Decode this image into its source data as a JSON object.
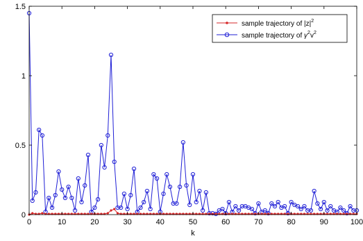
{
  "chart_data": {
    "type": "line",
    "xlabel": "k",
    "ylabel": "",
    "xlim": [
      0,
      100
    ],
    "ylim": [
      0,
      1.5
    ],
    "xticks": [
      0,
      10,
      20,
      30,
      40,
      50,
      60,
      70,
      80,
      90,
      100
    ],
    "yticks": [
      0,
      0.5,
      1,
      1.5
    ],
    "ytick_labels": [
      "0",
      "0.5",
      "1",
      "1.5"
    ],
    "grid": false,
    "legend_position": "top-right",
    "series": [
      {
        "name_prefix": "sample trajectory of |z|",
        "name_suffix": "2",
        "color": "#d62728",
        "marker": "filled-dot",
        "values": [
          0,
          0.01,
          0.005,
          0.005,
          0.01,
          0.005,
          0.005,
          0.005,
          0.005,
          0.005,
          0.005,
          0.005,
          0.005,
          0.005,
          0.005,
          0.005,
          0.005,
          0.005,
          0.005,
          0.005,
          0.005,
          0.005,
          0.005,
          0.005,
          0.01,
          0.03,
          0.04,
          0.01,
          0.005,
          0.005,
          0.005,
          0.005,
          0.005,
          0.005,
          0.005,
          0.005,
          0.005,
          0.005,
          0.005,
          0.005,
          0.005,
          0.005,
          0.005,
          0.005,
          0.005,
          0.005,
          0.005,
          0.005,
          0.005,
          0.005,
          0.005,
          0.005,
          0.005,
          0.005,
          0.005,
          0.005,
          0.005,
          0.005,
          0.005,
          0.005,
          0.005,
          0.005,
          0.005,
          0.005,
          0.005,
          0.005,
          0.005,
          0.005,
          0.005,
          0.005,
          0.005,
          0.005,
          0.005,
          0.005,
          0.005,
          0.005,
          0.005,
          0.005,
          0.005,
          0.005,
          0.005,
          0.005,
          0.005,
          0.005,
          0.005,
          0.005,
          0.005,
          0.005,
          0.005,
          0.005,
          0.005,
          0.005,
          0.005,
          0.005,
          0.005,
          0.005,
          0.005,
          0.005,
          0.005,
          0.005,
          0.005
        ]
      },
      {
        "name_prefix": "sample trajectory of ",
        "name_gamma": "γ",
        "name_sup1": "2",
        "name_v": "v",
        "name_sup2": "2",
        "color": "#1f1fd6",
        "marker": "open-circle",
        "values": [
          1.45,
          0.1,
          0.16,
          0.61,
          0.57,
          0.02,
          0.12,
          0.05,
          0.14,
          0.31,
          0.18,
          0.12,
          0.2,
          0.12,
          0.03,
          0.26,
          0.09,
          0.21,
          0.43,
          0.02,
          0.05,
          0.11,
          0.5,
          0.34,
          0.57,
          1.15,
          0.38,
          0.05,
          0.05,
          0.15,
          0.04,
          0.14,
          0.33,
          0.02,
          0.05,
          0.09,
          0.17,
          0.04,
          0.29,
          0.26,
          0.02,
          0.15,
          0.29,
          0.2,
          0.08,
          0.08,
          0.2,
          0.52,
          0.21,
          0.07,
          0.29,
          0.09,
          0.17,
          0.03,
          0.16,
          0.01,
          0.01,
          0.005,
          0.03,
          0.04,
          0.01,
          0.09,
          0.02,
          0.06,
          0.03,
          0.06,
          0.06,
          0.05,
          0.04,
          0.01,
          0.08,
          0.02,
          0.03,
          0.01,
          0.08,
          0.06,
          0.09,
          0.05,
          0.06,
          0.01,
          0.09,
          0.07,
          0.06,
          0.04,
          0.06,
          0.03,
          0.03,
          0.17,
          0.08,
          0.04,
          0.09,
          0.03,
          0.06,
          0.03,
          0.02,
          0.05,
          0.03,
          0.01,
          0.06,
          0.03,
          0.03
        ]
      }
    ]
  }
}
